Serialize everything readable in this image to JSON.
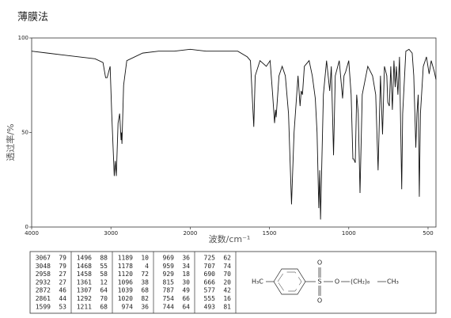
{
  "chart_data": {
    "type": "line",
    "title": "薄膜法",
    "x_label": "波数/cm⁻¹",
    "y_label": "透过率/%",
    "xlim": [
      4000,
      450
    ],
    "xticks": [
      4000,
      3000,
      2000,
      1500,
      1000,
      500
    ],
    "ylim": [
      0,
      100
    ],
    "yticks": [
      0,
      50,
      100
    ],
    "series": [
      {
        "color": "#111",
        "x": [
          4000,
          3800,
          3600,
          3400,
          3200,
          3100,
          3067,
          3048,
          3010,
          2990,
          2958,
          2945,
          2932,
          2910,
          2890,
          2872,
          2866,
          2861,
          2840,
          2800,
          2600,
          2400,
          2200,
          2000,
          1900,
          1800,
          1700,
          1640,
          1620,
          1599,
          1590,
          1560,
          1520,
          1496,
          1480,
          1468,
          1462,
          1458,
          1440,
          1420,
          1400,
          1380,
          1361,
          1345,
          1320,
          1307,
          1300,
          1292,
          1280,
          1250,
          1230,
          1211,
          1200,
          1189,
          1183,
          1178,
          1160,
          1140,
          1120,
          1110,
          1096,
          1085,
          1060,
          1039,
          1030,
          1020,
          1000,
          985,
          974,
          969,
          959,
          950,
          940,
          929,
          915,
          880,
          850,
          830,
          815,
          800,
          787,
          775,
          760,
          754,
          744,
          735,
          725,
          715,
          707,
          700,
          690,
          680,
          670,
          666,
          660,
          640,
          620,
          600,
          590,
          577,
          570,
          562,
          555,
          548,
          530,
          510,
          493,
          480,
          460,
          450
        ],
        "values": [
          93,
          92,
          91,
          90,
          89,
          87,
          79,
          79,
          85,
          60,
          27,
          35,
          27,
          55,
          60,
          46,
          50,
          44,
          75,
          88,
          92,
          93,
          93,
          94,
          93,
          93,
          93,
          90,
          88,
          53,
          80,
          88,
          85,
          88,
          70,
          55,
          62,
          58,
          80,
          85,
          80,
          60,
          12,
          50,
          80,
          64,
          72,
          70,
          85,
          88,
          80,
          68,
          50,
          10,
          30,
          4,
          70,
          88,
          72,
          85,
          38,
          80,
          88,
          68,
          80,
          82,
          88,
          70,
          36,
          36,
          34,
          70,
          60,
          18,
          70,
          85,
          80,
          70,
          30,
          80,
          49,
          85,
          80,
          66,
          64,
          85,
          62,
          88,
          74,
          85,
          70,
          90,
          40,
          20,
          60,
          93,
          94,
          92,
          80,
          42,
          60,
          70,
          16,
          60,
          85,
          90,
          81,
          88,
          82,
          78
        ]
      }
    ]
  },
  "peak_table": [
    [
      [
        3067,
        79
      ],
      [
        3048,
        79
      ],
      [
        2958,
        27
      ],
      [
        2932,
        27
      ],
      [
        2872,
        46
      ],
      [
        2861,
        44
      ],
      [
        1599,
        53
      ]
    ],
    [
      [
        1496,
        88
      ],
      [
        1468,
        55
      ],
      [
        1458,
        58
      ],
      [
        1361,
        12
      ],
      [
        1307,
        64
      ],
      [
        1292,
        70
      ],
      [
        1211,
        68
      ]
    ],
    [
      [
        1189,
        10
      ],
      [
        1178,
        4
      ],
      [
        1120,
        72
      ],
      [
        1096,
        38
      ],
      [
        1039,
        68
      ],
      [
        1020,
        82
      ],
      [
        974,
        36
      ]
    ],
    [
      [
        969,
        36
      ],
      [
        959,
        34
      ],
      [
        929,
        18
      ],
      [
        815,
        30
      ],
      [
        787,
        49
      ],
      [
        754,
        66
      ],
      [
        744,
        64
      ]
    ],
    [
      [
        725,
        62
      ],
      [
        707,
        74
      ],
      [
        690,
        70
      ],
      [
        666,
        20
      ],
      [
        577,
        42
      ],
      [
        555,
        16
      ],
      [
        493,
        81
      ]
    ]
  ],
  "structure": {
    "methyl": "H₃C",
    "sulfur": "S",
    "oxygen_top": "O",
    "oxygen_bottom": "O",
    "oxygen_ester": "O",
    "chain": "(CH₂)₈",
    "terminal": "CH₃"
  }
}
